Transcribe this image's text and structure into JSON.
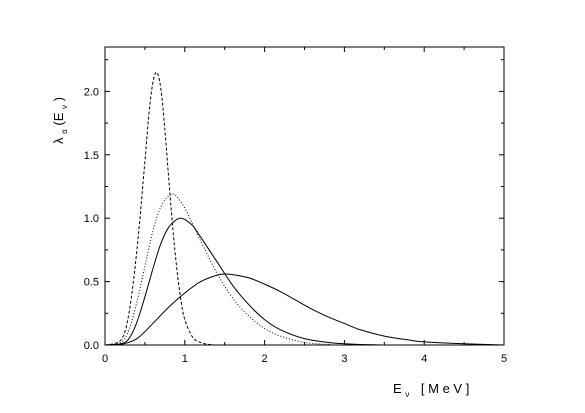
{
  "chart_data": {
    "type": "line",
    "xlabel": {
      "main": "E",
      "sub": "ν",
      "units": "[ M e V ]"
    },
    "ylabel": {
      "main": "λ",
      "sub1": "α",
      "mid": "(E",
      "sub2": "ν",
      "end": ")"
    },
    "xlim": [
      0,
      5
    ],
    "ylim": [
      0,
      2.35
    ],
    "xticks": [
      0,
      1,
      2,
      3,
      4,
      5
    ],
    "xtick_labels": [
      "0",
      "1",
      "2",
      "3",
      "4",
      "5"
    ],
    "yticks": [
      0,
      0.5,
      1.0,
      1.5,
      2.0
    ],
    "ytick_labels": [
      "0.0",
      "0.5",
      "1.0",
      "1.5",
      "2.0"
    ],
    "grid": false,
    "series": [
      {
        "style": "dashed",
        "color": "#000000",
        "x": [
          0.0,
          0.2,
          0.3,
          0.4,
          0.5,
          0.55,
          0.6,
          0.65,
          0.7,
          0.75,
          0.8,
          0.85,
          0.9,
          0.95,
          1.0,
          1.1,
          1.2,
          1.3,
          1.4,
          1.5,
          5.0
        ],
        "y": [
          0.0,
          0.04,
          0.25,
          0.75,
          1.45,
          1.82,
          2.07,
          2.15,
          2.02,
          1.7,
          1.3,
          0.92,
          0.6,
          0.36,
          0.2,
          0.06,
          0.02,
          0.005,
          0.0,
          0.0,
          0.0
        ]
      },
      {
        "style": "dotted",
        "color": "#000000",
        "x": [
          0.0,
          0.2,
          0.3,
          0.4,
          0.5,
          0.6,
          0.7,
          0.8,
          0.85,
          0.9,
          1.0,
          1.1,
          1.2,
          1.4,
          1.6,
          1.8,
          2.0,
          2.2,
          2.5,
          2.8,
          3.0,
          5.0
        ],
        "y": [
          0.0,
          0.02,
          0.12,
          0.34,
          0.62,
          0.9,
          1.09,
          1.18,
          1.19,
          1.17,
          1.08,
          0.95,
          0.82,
          0.57,
          0.37,
          0.23,
          0.13,
          0.07,
          0.02,
          0.005,
          0.0,
          0.0
        ]
      },
      {
        "style": "solid",
        "color": "#000000",
        "x": [
          0.0,
          0.2,
          0.3,
          0.4,
          0.5,
          0.6,
          0.7,
          0.8,
          0.9,
          0.95,
          1.0,
          1.1,
          1.2,
          1.4,
          1.6,
          1.8,
          2.0,
          2.2,
          2.5,
          2.8,
          3.0,
          3.5,
          5.0
        ],
        "y": [
          0.0,
          0.01,
          0.05,
          0.18,
          0.38,
          0.6,
          0.8,
          0.93,
          0.99,
          1.0,
          0.99,
          0.94,
          0.85,
          0.66,
          0.47,
          0.32,
          0.2,
          0.12,
          0.05,
          0.02,
          0.01,
          0.0,
          0.0
        ]
      },
      {
        "style": "solid",
        "color": "#000000",
        "x": [
          0.0,
          0.2,
          0.4,
          0.6,
          0.8,
          1.0,
          1.2,
          1.4,
          1.5,
          1.6,
          1.8,
          2.0,
          2.2,
          2.4,
          2.6,
          2.8,
          3.0,
          3.2,
          3.5,
          3.8,
          4.0,
          4.5,
          5.0
        ],
        "y": [
          0.0,
          0.005,
          0.05,
          0.17,
          0.3,
          0.41,
          0.5,
          0.55,
          0.56,
          0.555,
          0.53,
          0.48,
          0.42,
          0.35,
          0.28,
          0.22,
          0.17,
          0.12,
          0.07,
          0.04,
          0.025,
          0.01,
          0.0
        ]
      }
    ]
  }
}
